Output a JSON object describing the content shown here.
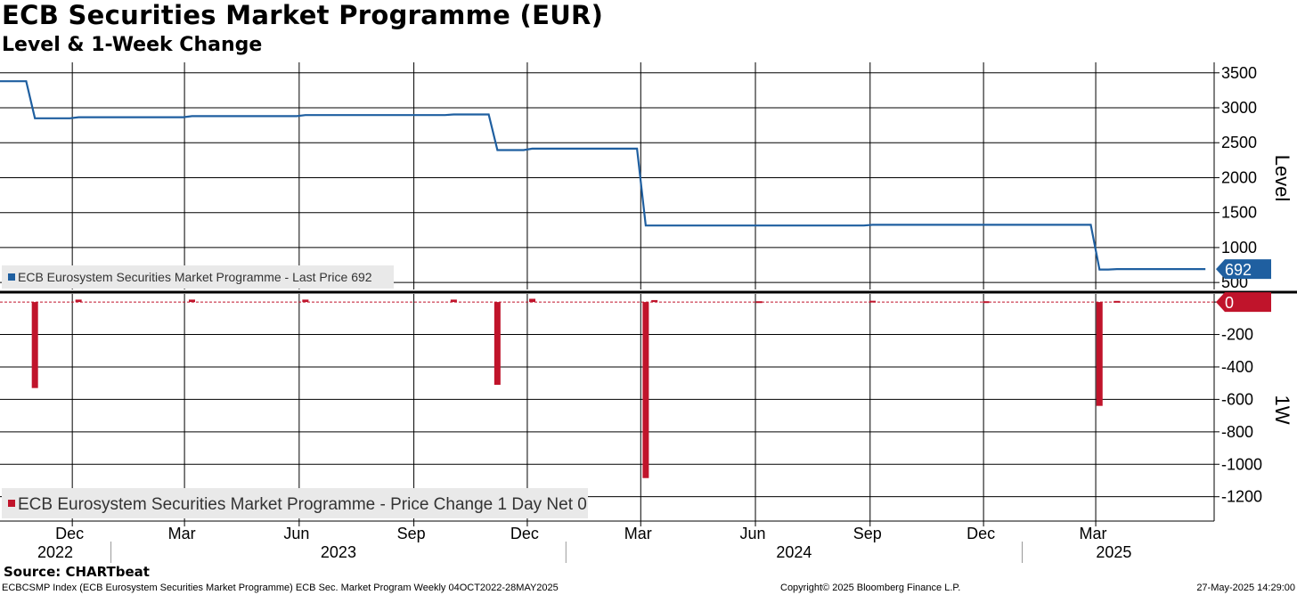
{
  "header": {
    "title": "ECB Securities Market Programme (EUR)",
    "subtitle": "Level & 1-Week Change"
  },
  "footer": {
    "source": "Source: CHARTbeat",
    "description": "ECBCSMP Index (ECB Eurosystem Securities Market Programme) ECB Sec. Market Program  Weekly 04OCT2022-28MAY2025",
    "copyright": "Copyright© 2025 Bloomberg Finance L.P.",
    "timestamp": "27-May-2025 14:29:00"
  },
  "colors": {
    "level_line": "#1f5fa0",
    "change_bars": "#c0142b",
    "grid": "#000000"
  },
  "chart_data": [
    {
      "type": "line",
      "axis_label": "Level",
      "ylim": [
        400,
        3650
      ],
      "yticks": [
        3500,
        3000,
        2500,
        2000,
        1500,
        1000,
        500
      ],
      "x_start": "2022-10-04",
      "x_end": "2025-05-28",
      "grid": true,
      "legend": {
        "placement": "bottom-left",
        "label": "ECB Eurosystem Securities Market Programme - Last Price 692"
      },
      "last_value_label": "692",
      "series": [
        {
          "name": "ECB Eurosystem Securities Market Programme - Last Price",
          "points": [
            [
              "2022-10-04",
              3380
            ],
            [
              "2022-10-25",
              3380
            ],
            [
              "2022-11-01",
              2850
            ],
            [
              "2022-11-29",
              2850
            ],
            [
              "2022-12-06",
              2865
            ],
            [
              "2023-02-28",
              2865
            ],
            [
              "2023-03-07",
              2880
            ],
            [
              "2023-05-30",
              2880
            ],
            [
              "2023-06-06",
              2895
            ],
            [
              "2023-09-26",
              2895
            ],
            [
              "2023-10-03",
              2905
            ],
            [
              "2023-10-31",
              2905
            ],
            [
              "2023-11-07",
              2395
            ],
            [
              "2023-11-28",
              2395
            ],
            [
              "2023-12-05",
              2415
            ],
            [
              "2024-02-27",
              2415
            ],
            [
              "2024-03-05",
              1315
            ],
            [
              "2024-08-27",
              1315
            ],
            [
              "2024-09-03",
              1325
            ],
            [
              "2025-02-25",
              1325
            ],
            [
              "2025-03-04",
              685
            ],
            [
              "2025-03-11",
              685
            ],
            [
              "2025-03-18",
              692
            ],
            [
              "2025-05-28",
              692
            ]
          ]
        }
      ]
    },
    {
      "type": "bar",
      "axis_label": "1W",
      "ylim": [
        -1350,
        50
      ],
      "yticks": [
        0,
        -200,
        -400,
        -600,
        -800,
        -1000,
        -1200
      ],
      "x_start": "2022-10-04",
      "x_end": "2025-05-28",
      "grid": true,
      "legend": {
        "placement": "bottom-left",
        "label": "ECB Eurosystem Securities Market Programme - Price Change 1 Day Net 0"
      },
      "last_value_label": "0",
      "series": [
        {
          "name": "ECB Eurosystem Securities Market Programme - Price Change 1 Day Net",
          "points": [
            [
              "2022-11-01",
              -530
            ],
            [
              "2022-12-06",
              15
            ],
            [
              "2023-03-07",
              15
            ],
            [
              "2023-06-06",
              15
            ],
            [
              "2023-10-03",
              15
            ],
            [
              "2023-11-07",
              -510
            ],
            [
              "2023-12-05",
              20
            ],
            [
              "2024-03-05",
              -1085
            ],
            [
              "2024-03-12",
              12
            ],
            [
              "2024-06-04",
              5
            ],
            [
              "2024-09-03",
              8
            ],
            [
              "2024-12-03",
              5
            ],
            [
              "2025-03-04",
              -640
            ],
            [
              "2025-03-18",
              7
            ]
          ]
        }
      ]
    }
  ],
  "x_axis": {
    "months": [
      {
        "label": "Dec",
        "date": "2022-12-01"
      },
      {
        "label": "Mar",
        "date": "2023-03-01"
      },
      {
        "label": "Jun",
        "date": "2023-06-01"
      },
      {
        "label": "Sep",
        "date": "2023-09-01"
      },
      {
        "label": "Dec",
        "date": "2023-12-01"
      },
      {
        "label": "Mar",
        "date": "2024-03-01"
      },
      {
        "label": "Jun",
        "date": "2024-06-01"
      },
      {
        "label": "Sep",
        "date": "2024-09-01"
      },
      {
        "label": "Dec",
        "date": "2024-12-01"
      },
      {
        "label": "Mar",
        "date": "2025-03-01"
      }
    ],
    "years": [
      {
        "label": "2022",
        "date": "2022-10-04",
        "end": "2023-01-01"
      },
      {
        "label": "2023",
        "date": "2023-01-01",
        "end": "2024-01-01"
      },
      {
        "label": "2024",
        "date": "2024-01-01",
        "end": "2025-01-01"
      },
      {
        "label": "2025",
        "date": "2025-01-01",
        "end": "2025-05-28"
      }
    ]
  }
}
